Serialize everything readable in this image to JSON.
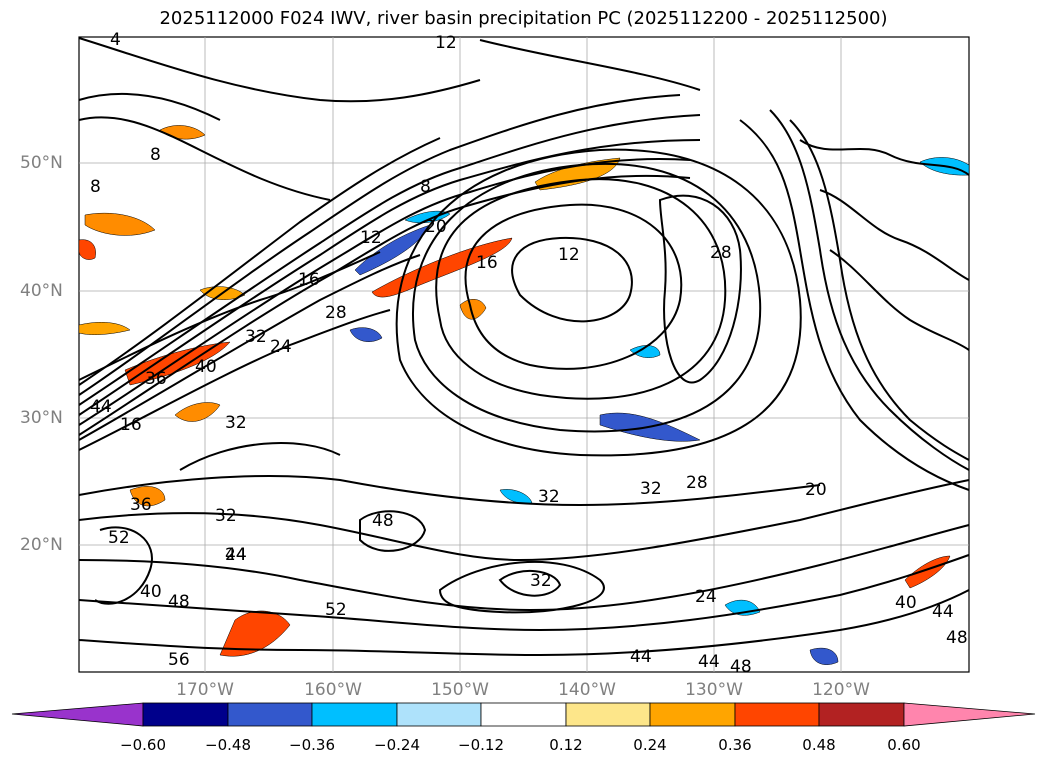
{
  "title": "2025112000 F024 IWV, river basin precipitation PC (2025112200 - 2025112500)",
  "map": {
    "lat_labels": [
      "50°N",
      "40°N",
      "30°N",
      "20°N"
    ],
    "lon_labels": [
      "170°W",
      "160°W",
      "150°W",
      "140°W",
      "130°W",
      "120°W"
    ],
    "contour_labels": [
      "4",
      "8",
      "12",
      "16",
      "20",
      "24",
      "28",
      "32",
      "36",
      "40",
      "44",
      "48",
      "52",
      "56"
    ]
  },
  "colorbar": {
    "ticks": [
      "−0.60",
      "−0.48",
      "−0.36",
      "−0.24",
      "−0.12",
      "0.12",
      "0.24",
      "0.36",
      "0.48",
      "0.60"
    ],
    "colors": [
      "#9933cc",
      "#00008b",
      "#3358cc",
      "#00bfff",
      "#aee2fb",
      "#ffffff",
      "#fde68a",
      "#ffa500",
      "#ff4500",
      "#b22222",
      "#ff85ad"
    ]
  }
}
